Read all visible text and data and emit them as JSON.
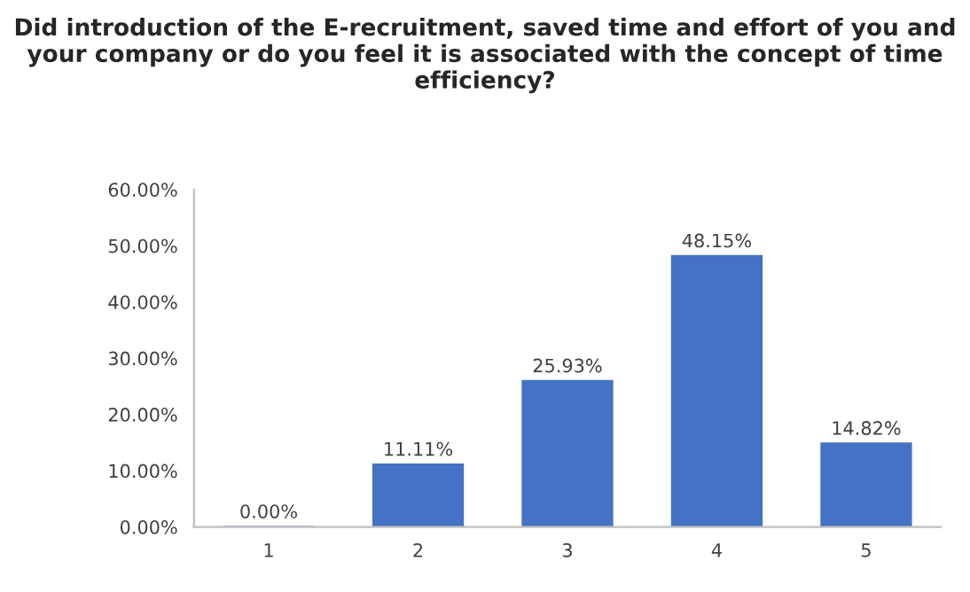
{
  "chart_data": {
    "type": "bar",
    "title": "Did introduction of the E-recruitment, saved time and effort of you and your company or do you feel it is associated with the concept of time efficiency?",
    "categories": [
      "1",
      "2",
      "3",
      "4",
      "5"
    ],
    "values": [
      0.0,
      11.11,
      25.93,
      48.15,
      14.82
    ],
    "value_labels": [
      "0.00%",
      "11.11%",
      "25.93%",
      "48.15%",
      "14.82%"
    ],
    "color": "#4472c4",
    "ylim": [
      0,
      60
    ],
    "yticks": [
      {
        "value": 0,
        "label": "0.00%"
      },
      {
        "value": 10,
        "label": "10.00%"
      },
      {
        "value": 20,
        "label": "20.00%"
      },
      {
        "value": 30,
        "label": "30.00%"
      },
      {
        "value": 40,
        "label": "40.00%"
      },
      {
        "value": 50,
        "label": "50.00%"
      },
      {
        "value": 60,
        "label": "60.00%"
      }
    ]
  }
}
